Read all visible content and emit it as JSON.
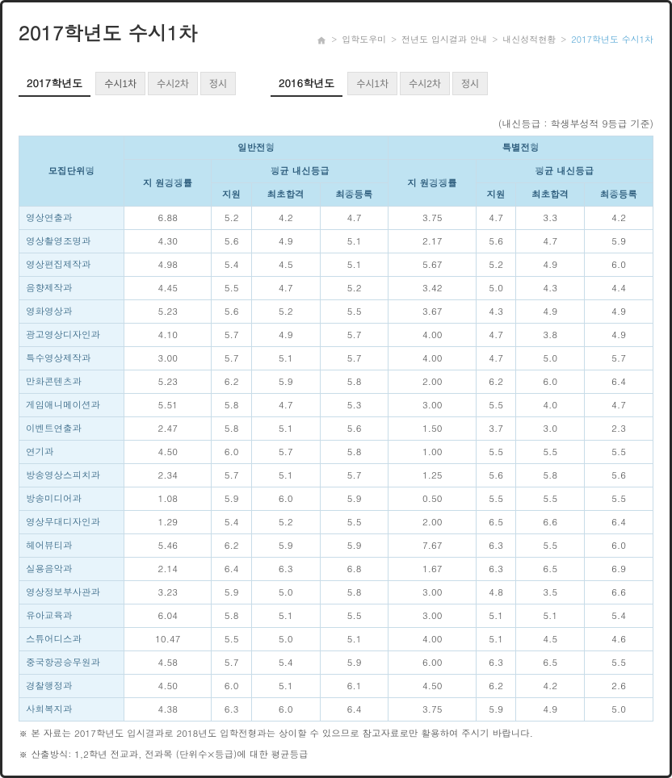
{
  "page_title": "2017학년도 수시1차",
  "breadcrumb": {
    "items": [
      "입학도우미",
      "전년도 입시결과 안내",
      "내신성적현황"
    ],
    "current": "2017학년도 수시1차"
  },
  "year_tabs": {
    "groups": [
      {
        "label": "2017학년도",
        "tabs": [
          "수시1차",
          "수시2차",
          "정시"
        ]
      },
      {
        "label": "2016학년도",
        "tabs": [
          "수시1차",
          "수시2차",
          "정시"
        ]
      }
    ]
  },
  "legend_note": "(내신등급 : 학생부성적 9등급 기준)",
  "table": {
    "header": {
      "col_dept": "모집단위명",
      "group_general": "일반전형",
      "group_special": "특별전형",
      "col_ratio": "지 원경쟁률",
      "group_avg": "평균 내신등급",
      "col_apply": "지원",
      "col_first": "최초합격",
      "col_final": "최종등록"
    },
    "columns_style": {
      "header_bg": "#bfe3f2",
      "header_text": "#2a5a7a",
      "dept_bg": "#e7f4fb",
      "cell_bg": "#ffffff",
      "border": "#c8dce8"
    },
    "rows": [
      {
        "dept": "영상연출과",
        "g_ratio": "6.88",
        "g_apply": "5.2",
        "g_first": "4.2",
        "g_final": "4.7",
        "s_ratio": "3.75",
        "s_apply": "4.7",
        "s_first": "3.3",
        "s_final": "4.2"
      },
      {
        "dept": "영상촬영조명과",
        "g_ratio": "4.30",
        "g_apply": "5.6",
        "g_first": "4.9",
        "g_final": "5.1",
        "s_ratio": "2.17",
        "s_apply": "5.6",
        "s_first": "4.7",
        "s_final": "5.9"
      },
      {
        "dept": "영상편집제작과",
        "g_ratio": "4.98",
        "g_apply": "5.4",
        "g_first": "4.5",
        "g_final": "5.1",
        "s_ratio": "5.67",
        "s_apply": "5.2",
        "s_first": "4.9",
        "s_final": "6.0"
      },
      {
        "dept": "음향제작과",
        "g_ratio": "4.45",
        "g_apply": "5.5",
        "g_first": "4.7",
        "g_final": "5.2",
        "s_ratio": "3.42",
        "s_apply": "5.0",
        "s_first": "4.3",
        "s_final": "4.4"
      },
      {
        "dept": "영화영상과",
        "g_ratio": "5.23",
        "g_apply": "5.6",
        "g_first": "5.2",
        "g_final": "5.5",
        "s_ratio": "3.67",
        "s_apply": "4.3",
        "s_first": "4.9",
        "s_final": "4.9"
      },
      {
        "dept": "광고영상디자인과",
        "g_ratio": "4.10",
        "g_apply": "5.7",
        "g_first": "4.9",
        "g_final": "5.7",
        "s_ratio": "4.00",
        "s_apply": "4.7",
        "s_first": "3.8",
        "s_final": "4.9"
      },
      {
        "dept": "특수영상제작과",
        "g_ratio": "3.00",
        "g_apply": "5.7",
        "g_first": "5.1",
        "g_final": "5.7",
        "s_ratio": "4.00",
        "s_apply": "4.7",
        "s_first": "5.0",
        "s_final": "5.7"
      },
      {
        "dept": "만화콘텐츠과",
        "g_ratio": "5.23",
        "g_apply": "6.2",
        "g_first": "5.9",
        "g_final": "5.8",
        "s_ratio": "2.00",
        "s_apply": "6.2",
        "s_first": "6.0",
        "s_final": "6.4"
      },
      {
        "dept": "게임애니메이션과",
        "g_ratio": "5.51",
        "g_apply": "5.8",
        "g_first": "4.7",
        "g_final": "5.3",
        "s_ratio": "3.00",
        "s_apply": "5.5",
        "s_first": "4.0",
        "s_final": "4.7"
      },
      {
        "dept": "이벤트연출과",
        "g_ratio": "2.47",
        "g_apply": "5.8",
        "g_first": "5.1",
        "g_final": "5.6",
        "s_ratio": "1.50",
        "s_apply": "3.7",
        "s_first": "3.0",
        "s_final": "2.3"
      },
      {
        "dept": "연기과",
        "g_ratio": "4.50",
        "g_apply": "6.0",
        "g_first": "5.7",
        "g_final": "5.8",
        "s_ratio": "1.00",
        "s_apply": "5.5",
        "s_first": "5.5",
        "s_final": "5.5"
      },
      {
        "dept": "방송영상스피치과",
        "g_ratio": "2.34",
        "g_apply": "5.7",
        "g_first": "5.1",
        "g_final": "5.7",
        "s_ratio": "1.25",
        "s_apply": "5.6",
        "s_first": "5.8",
        "s_final": "5.6"
      },
      {
        "dept": "방송미디어과",
        "g_ratio": "1.08",
        "g_apply": "5.9",
        "g_first": "6.0",
        "g_final": "5.9",
        "s_ratio": "0.50",
        "s_apply": "5.5",
        "s_first": "5.5",
        "s_final": "5.5"
      },
      {
        "dept": "영상무대디자인과",
        "g_ratio": "1.29",
        "g_apply": "5.4",
        "g_first": "5.2",
        "g_final": "5.5",
        "s_ratio": "2.00",
        "s_apply": "6.5",
        "s_first": "6.6",
        "s_final": "6.4"
      },
      {
        "dept": "헤어뷰티과",
        "g_ratio": "5.46",
        "g_apply": "6.2",
        "g_first": "5.9",
        "g_final": "5.9",
        "s_ratio": "7.67",
        "s_apply": "6.3",
        "s_first": "5.5",
        "s_final": "6.0"
      },
      {
        "dept": "실용음악과",
        "g_ratio": "2.14",
        "g_apply": "6.4",
        "g_first": "6.3",
        "g_final": "6.8",
        "s_ratio": "1.67",
        "s_apply": "6.3",
        "s_first": "6.5",
        "s_final": "6.9"
      },
      {
        "dept": "영상정보부사관과",
        "g_ratio": "3.23",
        "g_apply": "5.9",
        "g_first": "5.0",
        "g_final": "5.8",
        "s_ratio": "3.00",
        "s_apply": "4.8",
        "s_first": "3.5",
        "s_final": "6.6"
      },
      {
        "dept": "유아교육과",
        "g_ratio": "6.04",
        "g_apply": "5.8",
        "g_first": "5.1",
        "g_final": "5.5",
        "s_ratio": "3.00",
        "s_apply": "5.1",
        "s_first": "5.1",
        "s_final": "5.4"
      },
      {
        "dept": "스튜어디스과",
        "g_ratio": "10.47",
        "g_apply": "5.5",
        "g_first": "5.0",
        "g_final": "5.1",
        "s_ratio": "4.00",
        "s_apply": "5.1",
        "s_first": "4.5",
        "s_final": "4.6"
      },
      {
        "dept": "중국항공승무원과",
        "g_ratio": "4.58",
        "g_apply": "5.7",
        "g_first": "5.4",
        "g_final": "5.9",
        "s_ratio": "6.00",
        "s_apply": "6.3",
        "s_first": "6.5",
        "s_final": "5.5"
      },
      {
        "dept": "경찰행정과",
        "g_ratio": "4.50",
        "g_apply": "6.0",
        "g_first": "5.1",
        "g_final": "6.1",
        "s_ratio": "4.50",
        "s_apply": "6.2",
        "s_first": "4.2",
        "s_final": "2.6"
      },
      {
        "dept": "사회복지과",
        "g_ratio": "4.38",
        "g_apply": "6.3",
        "g_first": "6.0",
        "g_final": "6.4",
        "s_ratio": "3.75",
        "s_apply": "5.9",
        "s_first": "4.9",
        "s_final": "5.0"
      }
    ]
  },
  "footnotes": [
    "※ 본 자료는 2017학년도 입시결과로 2018년도 입학전형과는 상이할 수 있으므로 참고자료로만 활용하여 주시기 바랍니다.",
    "※ 산출방식: 1,2학년 전교과, 전과목 (단위수×등급)에 대한 평균등급"
  ]
}
